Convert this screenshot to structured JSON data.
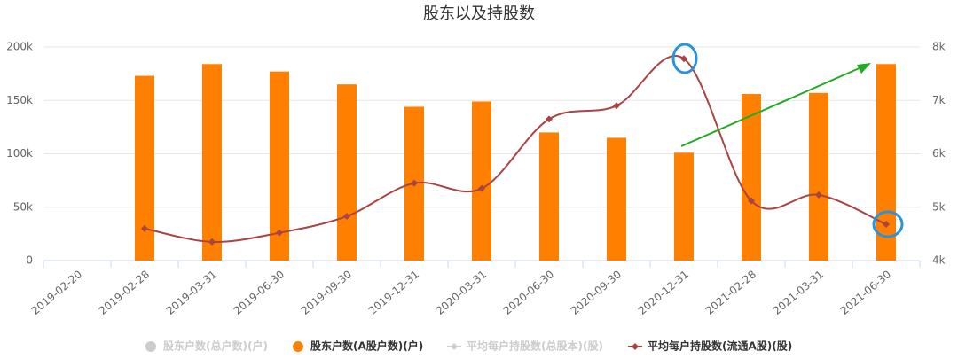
{
  "chart_data": {
    "type": "bar-line",
    "title": "股东以及持股数",
    "categories": [
      "2019-02-20",
      "2019-02-28",
      "2019-03-31",
      "2019-06-30",
      "2019-09-30",
      "2019-12-31",
      "2020-03-31",
      "2020-06-30",
      "2020-09-30",
      "2020-12-31",
      "2021-02-28",
      "2021-03-31",
      "2021-06-30"
    ],
    "series": [
      {
        "name": "股东户数(总户数)(户)",
        "color": "#cccccc",
        "visible": false
      },
      {
        "name": "股东户数(A股户数)(户)",
        "color": "#ff7f00",
        "type": "bar",
        "values": [
          null,
          173000,
          184000,
          177000,
          165000,
          144000,
          149000,
          120000,
          115000,
          101000,
          156000,
          157000,
          184000
        ]
      },
      {
        "name": "平均每户持股数(总股本)(股)",
        "color": "#cccccc",
        "visible": false
      },
      {
        "name": "平均每户持股数(流通A股)(股)",
        "color": "#a94442",
        "type": "line",
        "axis": "y2",
        "values": [
          null,
          4600,
          4350,
          4520,
          4830,
          5450,
          5350,
          6650,
          6900,
          7780,
          5120,
          5230,
          4680
        ]
      }
    ],
    "ylim": [
      0,
      200000
    ],
    "yticks": [
      0,
      {
        "value": 50000,
        "label": "50k"
      },
      {
        "value": 100000,
        "label": "100k"
      },
      {
        "value": 150000,
        "label": "150k"
      },
      {
        "value": 200000,
        "label": "200k"
      }
    ],
    "y2lim": [
      4000,
      8000
    ],
    "y2ticks": [
      {
        "value": 4000,
        "label": "4k"
      },
      {
        "value": 5000,
        "label": "5k"
      },
      {
        "value": 6000,
        "label": "6k"
      },
      {
        "value": 7000,
        "label": "7k"
      },
      {
        "value": 8000,
        "label": "8k"
      }
    ],
    "grid": true
  }
}
